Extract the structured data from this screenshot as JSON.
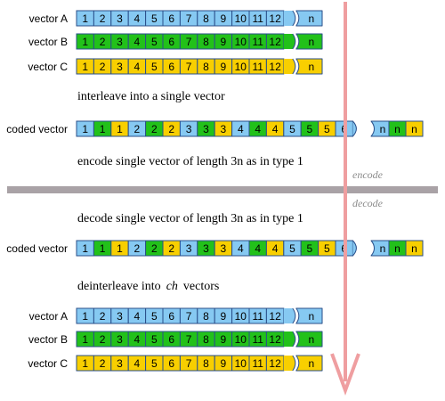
{
  "colors": {
    "A": "#86c9f2",
    "B": "#22c11a",
    "C": "#f8cf00",
    "stroke": "#2a4f8a",
    "divider": "#a9a2a6",
    "arrow": "#ef9ea0"
  },
  "labels": {
    "vector_a": "vector A",
    "vector_b": "vector B",
    "vector_c": "vector C",
    "coded_vector": "coded vector"
  },
  "texts": {
    "interleave": "interleave into a single vector",
    "encode": "encode single vector of length 3n as in type 1",
    "decode": "decode single vector of length 3n as in type 1",
    "deinterleave_pre": "deinterleave into",
    "deinterleave_ch": "ch",
    "deinterleave_post": "vectors",
    "encode_tag": "encode",
    "decode_tag": "decode"
  },
  "vector_cells": [
    "1",
    "2",
    "3",
    "4",
    "5",
    "6",
    "7",
    "8",
    "9",
    "10",
    "11",
    "12"
  ],
  "end_cell": "n",
  "coded_cells": [
    {
      "t": "1",
      "c": "A"
    },
    {
      "t": "1",
      "c": "B"
    },
    {
      "t": "1",
      "c": "C"
    },
    {
      "t": "2",
      "c": "A"
    },
    {
      "t": "2",
      "c": "B"
    },
    {
      "t": "2",
      "c": "C"
    },
    {
      "t": "3",
      "c": "A"
    },
    {
      "t": "3",
      "c": "B"
    },
    {
      "t": "3",
      "c": "C"
    },
    {
      "t": "4",
      "c": "A"
    },
    {
      "t": "4",
      "c": "B"
    },
    {
      "t": "4",
      "c": "C"
    },
    {
      "t": "5",
      "c": "A"
    },
    {
      "t": "5",
      "c": "B"
    },
    {
      "t": "5",
      "c": "C"
    },
    {
      "t": "6",
      "c": "A"
    }
  ],
  "coded_tail": [
    {
      "t": "n",
      "c": "A"
    },
    {
      "t": "n",
      "c": "B"
    },
    {
      "t": "n",
      "c": "C"
    }
  ]
}
